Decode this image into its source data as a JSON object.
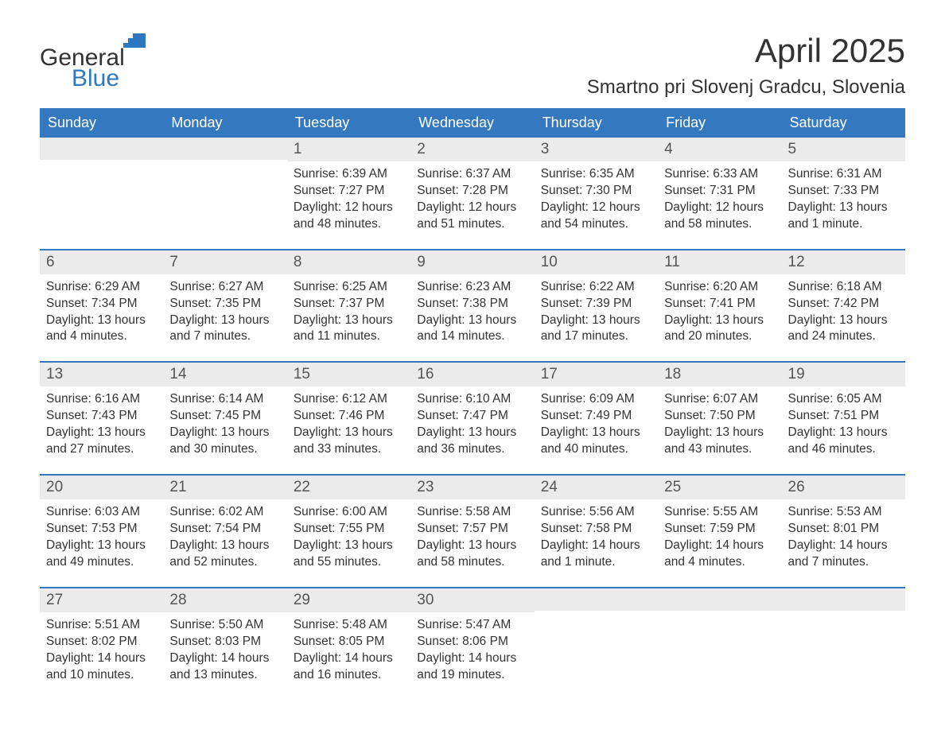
{
  "brand": {
    "word1": "General",
    "word2": "Blue",
    "logo_color": "#2e78c0",
    "text_color": "#333333"
  },
  "title": "April 2025",
  "location": "Smartno pri Slovenj Gradcu, Slovenia",
  "colors": {
    "header_bg": "#3478bf",
    "header_text": "#ffffff",
    "number_row_bg": "#ebebeb",
    "number_text": "#555555",
    "body_text": "#333333",
    "week_divider": "#3478bf",
    "page_bg": "#ffffff"
  },
  "fonts": {
    "title_size_pt": 32,
    "location_size_pt": 18,
    "day_header_size_pt": 14,
    "day_number_size_pt": 14,
    "body_size_pt": 12
  },
  "day_headers": [
    "Sunday",
    "Monday",
    "Tuesday",
    "Wednesday",
    "Thursday",
    "Friday",
    "Saturday"
  ],
  "weeks": [
    [
      {
        "n": "",
        "lines": []
      },
      {
        "n": "",
        "lines": []
      },
      {
        "n": "1",
        "lines": [
          "Sunrise: 6:39 AM",
          "Sunset: 7:27 PM",
          "Daylight: 12 hours",
          "and 48 minutes."
        ]
      },
      {
        "n": "2",
        "lines": [
          "Sunrise: 6:37 AM",
          "Sunset: 7:28 PM",
          "Daylight: 12 hours",
          "and 51 minutes."
        ]
      },
      {
        "n": "3",
        "lines": [
          "Sunrise: 6:35 AM",
          "Sunset: 7:30 PM",
          "Daylight: 12 hours",
          "and 54 minutes."
        ]
      },
      {
        "n": "4",
        "lines": [
          "Sunrise: 6:33 AM",
          "Sunset: 7:31 PM",
          "Daylight: 12 hours",
          "and 58 minutes."
        ]
      },
      {
        "n": "5",
        "lines": [
          "Sunrise: 6:31 AM",
          "Sunset: 7:33 PM",
          "Daylight: 13 hours",
          "and 1 minute."
        ]
      }
    ],
    [
      {
        "n": "6",
        "lines": [
          "Sunrise: 6:29 AM",
          "Sunset: 7:34 PM",
          "Daylight: 13 hours",
          "and 4 minutes."
        ]
      },
      {
        "n": "7",
        "lines": [
          "Sunrise: 6:27 AM",
          "Sunset: 7:35 PM",
          "Daylight: 13 hours",
          "and 7 minutes."
        ]
      },
      {
        "n": "8",
        "lines": [
          "Sunrise: 6:25 AM",
          "Sunset: 7:37 PM",
          "Daylight: 13 hours",
          "and 11 minutes."
        ]
      },
      {
        "n": "9",
        "lines": [
          "Sunrise: 6:23 AM",
          "Sunset: 7:38 PM",
          "Daylight: 13 hours",
          "and 14 minutes."
        ]
      },
      {
        "n": "10",
        "lines": [
          "Sunrise: 6:22 AM",
          "Sunset: 7:39 PM",
          "Daylight: 13 hours",
          "and 17 minutes."
        ]
      },
      {
        "n": "11",
        "lines": [
          "Sunrise: 6:20 AM",
          "Sunset: 7:41 PM",
          "Daylight: 13 hours",
          "and 20 minutes."
        ]
      },
      {
        "n": "12",
        "lines": [
          "Sunrise: 6:18 AM",
          "Sunset: 7:42 PM",
          "Daylight: 13 hours",
          "and 24 minutes."
        ]
      }
    ],
    [
      {
        "n": "13",
        "lines": [
          "Sunrise: 6:16 AM",
          "Sunset: 7:43 PM",
          "Daylight: 13 hours",
          "and 27 minutes."
        ]
      },
      {
        "n": "14",
        "lines": [
          "Sunrise: 6:14 AM",
          "Sunset: 7:45 PM",
          "Daylight: 13 hours",
          "and 30 minutes."
        ]
      },
      {
        "n": "15",
        "lines": [
          "Sunrise: 6:12 AM",
          "Sunset: 7:46 PM",
          "Daylight: 13 hours",
          "and 33 minutes."
        ]
      },
      {
        "n": "16",
        "lines": [
          "Sunrise: 6:10 AM",
          "Sunset: 7:47 PM",
          "Daylight: 13 hours",
          "and 36 minutes."
        ]
      },
      {
        "n": "17",
        "lines": [
          "Sunrise: 6:09 AM",
          "Sunset: 7:49 PM",
          "Daylight: 13 hours",
          "and 40 minutes."
        ]
      },
      {
        "n": "18",
        "lines": [
          "Sunrise: 6:07 AM",
          "Sunset: 7:50 PM",
          "Daylight: 13 hours",
          "and 43 minutes."
        ]
      },
      {
        "n": "19",
        "lines": [
          "Sunrise: 6:05 AM",
          "Sunset: 7:51 PM",
          "Daylight: 13 hours",
          "and 46 minutes."
        ]
      }
    ],
    [
      {
        "n": "20",
        "lines": [
          "Sunrise: 6:03 AM",
          "Sunset: 7:53 PM",
          "Daylight: 13 hours",
          "and 49 minutes."
        ]
      },
      {
        "n": "21",
        "lines": [
          "Sunrise: 6:02 AM",
          "Sunset: 7:54 PM",
          "Daylight: 13 hours",
          "and 52 minutes."
        ]
      },
      {
        "n": "22",
        "lines": [
          "Sunrise: 6:00 AM",
          "Sunset: 7:55 PM",
          "Daylight: 13 hours",
          "and 55 minutes."
        ]
      },
      {
        "n": "23",
        "lines": [
          "Sunrise: 5:58 AM",
          "Sunset: 7:57 PM",
          "Daylight: 13 hours",
          "and 58 minutes."
        ]
      },
      {
        "n": "24",
        "lines": [
          "Sunrise: 5:56 AM",
          "Sunset: 7:58 PM",
          "Daylight: 14 hours",
          "and 1 minute."
        ]
      },
      {
        "n": "25",
        "lines": [
          "Sunrise: 5:55 AM",
          "Sunset: 7:59 PM",
          "Daylight: 14 hours",
          "and 4 minutes."
        ]
      },
      {
        "n": "26",
        "lines": [
          "Sunrise: 5:53 AM",
          "Sunset: 8:01 PM",
          "Daylight: 14 hours",
          "and 7 minutes."
        ]
      }
    ],
    [
      {
        "n": "27",
        "lines": [
          "Sunrise: 5:51 AM",
          "Sunset: 8:02 PM",
          "Daylight: 14 hours",
          "and 10 minutes."
        ]
      },
      {
        "n": "28",
        "lines": [
          "Sunrise: 5:50 AM",
          "Sunset: 8:03 PM",
          "Daylight: 14 hours",
          "and 13 minutes."
        ]
      },
      {
        "n": "29",
        "lines": [
          "Sunrise: 5:48 AM",
          "Sunset: 8:05 PM",
          "Daylight: 14 hours",
          "and 16 minutes."
        ]
      },
      {
        "n": "30",
        "lines": [
          "Sunrise: 5:47 AM",
          "Sunset: 8:06 PM",
          "Daylight: 14 hours",
          "and 19 minutes."
        ]
      },
      {
        "n": "",
        "lines": []
      },
      {
        "n": "",
        "lines": []
      },
      {
        "n": "",
        "lines": []
      }
    ]
  ]
}
